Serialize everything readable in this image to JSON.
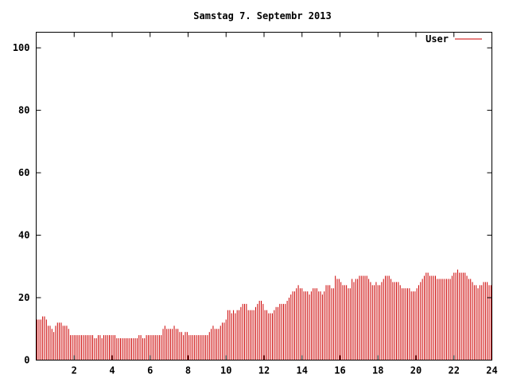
{
  "chart_data": {
    "type": "bar",
    "title": "Samstag 7. Septembr 2013",
    "xlabel": "",
    "ylabel": "",
    "xlim": [
      0,
      24
    ],
    "ylim": [
      0,
      105
    ],
    "x_ticks": [
      "2",
      "4",
      "6",
      "8",
      "10",
      "12",
      "14",
      "16",
      "18",
      "20",
      "22",
      "24"
    ],
    "y_ticks": [
      "0",
      "20",
      "40",
      "60",
      "80",
      "100"
    ],
    "grid": false,
    "legend_position": "top-right",
    "bar_color": "#cc0000",
    "series": [
      {
        "name": "User",
        "values": [
          13,
          13,
          13,
          14,
          14,
          13,
          11,
          11,
          10,
          9,
          11,
          12,
          12,
          12,
          11,
          11,
          11,
          10,
          8,
          8,
          8,
          8,
          8,
          8,
          8,
          8,
          8,
          8,
          8,
          8,
          8,
          7,
          7,
          8,
          8,
          7,
          8,
          8,
          8,
          8,
          8,
          8,
          8,
          7,
          7,
          7,
          7,
          7,
          7,
          7,
          7,
          7,
          7,
          7,
          7,
          8,
          8,
          7,
          7,
          8,
          8,
          8,
          8,
          8,
          8,
          8,
          8,
          8,
          10,
          11,
          10,
          10,
          10,
          10,
          11,
          10,
          10,
          9,
          9,
          8,
          9,
          9,
          8,
          8,
          8,
          8,
          8,
          8,
          8,
          8,
          8,
          8,
          8,
          9,
          10,
          11,
          10,
          10,
          10,
          11,
          12,
          12,
          13,
          16,
          16,
          15,
          16,
          15,
          16,
          16,
          17,
          18,
          18,
          18,
          16,
          16,
          16,
          16,
          17,
          18,
          19,
          19,
          18,
          16,
          16,
          15,
          15,
          15,
          16,
          17,
          17,
          18,
          18,
          18,
          18,
          19,
          20,
          21,
          22,
          22,
          23,
          24,
          23,
          23,
          22,
          22,
          22,
          21,
          22,
          23,
          23,
          23,
          22,
          22,
          21,
          22,
          24,
          24,
          24,
          23,
          23,
          27,
          26,
          26,
          25,
          24,
          24,
          24,
          23,
          23,
          26,
          25,
          26,
          26,
          27,
          27,
          27,
          27,
          27,
          26,
          25,
          24,
          24,
          25,
          24,
          24,
          25,
          26,
          27,
          27,
          27,
          26,
          25,
          25,
          25,
          25,
          24,
          23,
          23,
          23,
          23,
          23,
          22,
          22,
          22,
          23,
          24,
          25,
          26,
          27,
          28,
          28,
          27,
          27,
          27,
          27,
          26,
          26,
          26,
          26,
          26,
          26,
          26,
          26,
          27,
          28,
          28,
          29,
          28,
          28,
          28,
          28,
          27,
          26,
          26,
          25,
          24,
          24,
          23,
          24,
          24,
          25,
          25,
          25,
          24,
          24
        ]
      }
    ]
  }
}
